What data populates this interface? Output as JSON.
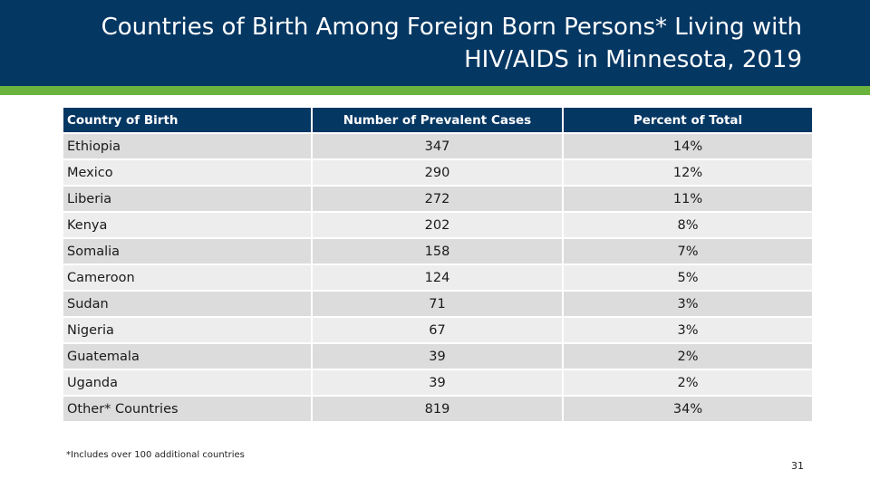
{
  "title": "Countries of Birth Among Foreign Born Persons* Living with HIV/AIDS in Minnesota, 2019",
  "colors": {
    "header_bg": "#053763",
    "accent_bar": "#6ab43e",
    "table_header": "#053763",
    "row_odd": "#dcdcdc",
    "row_even": "#ededed"
  },
  "table": {
    "columns": [
      "Country of Birth",
      "Number of Prevalent Cases",
      "Percent of Total"
    ],
    "rows": [
      [
        "Ethiopia",
        "347",
        "14%"
      ],
      [
        "Mexico",
        "290",
        "12%"
      ],
      [
        "Liberia",
        "272",
        "11%"
      ],
      [
        "Kenya",
        "202",
        "8%"
      ],
      [
        "Somalia",
        "158",
        "7%"
      ],
      [
        "Cameroon",
        "124",
        "5%"
      ],
      [
        "Sudan",
        "71",
        "3%"
      ],
      [
        "Nigeria",
        "67",
        "3%"
      ],
      [
        "Guatemala",
        "39",
        "2%"
      ],
      [
        "Uganda",
        "39",
        "2%"
      ],
      [
        "Other* Countries",
        "819",
        "34%"
      ]
    ]
  },
  "footnote": "*Includes over 100 additional countries",
  "page_number": "31"
}
